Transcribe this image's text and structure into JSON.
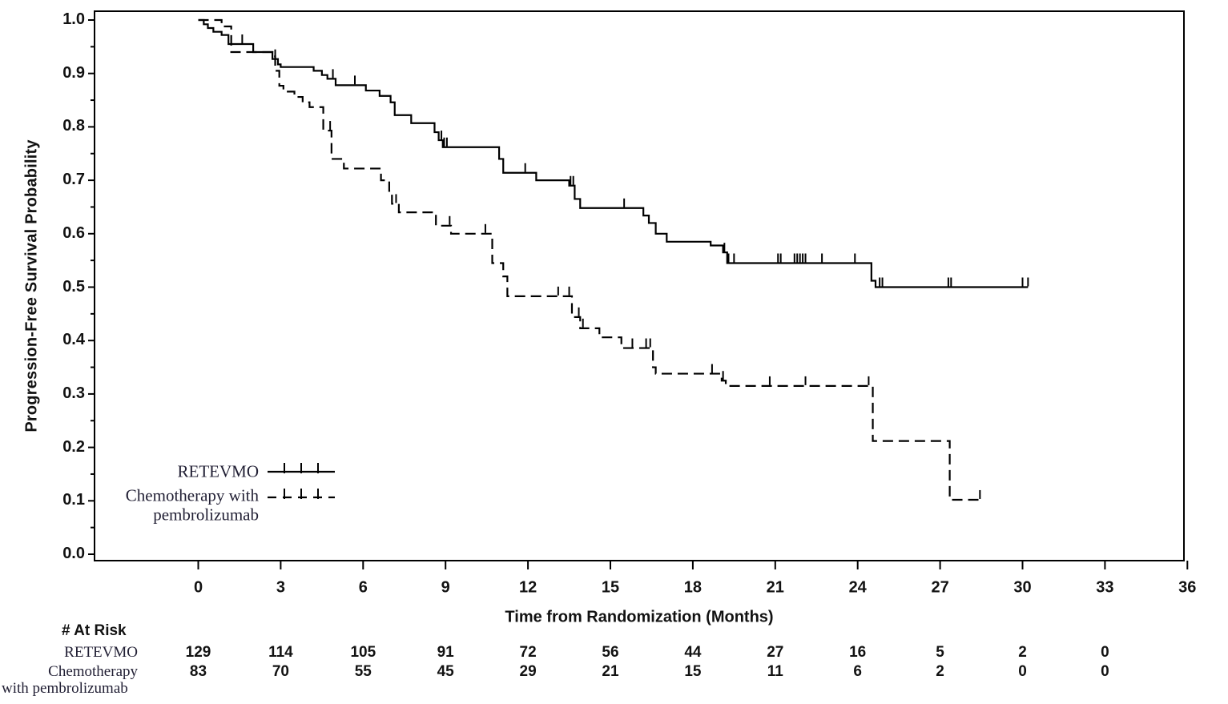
{
  "figure": {
    "background": "#ffffff",
    "curve_color": "#000000",
    "sans_text_color": "#121212",
    "serif_text_color": "#201e33"
  },
  "chart_data": {
    "type": "line",
    "subtype": "kaplan-meier-step-plot",
    "title": "",
    "xlabel": "Time from Randomization (Months)",
    "ylabel": "Progression-Free Survival Probability",
    "xlim": [
      -3.8,
      36.3
    ],
    "ylim": [
      -0.015,
      1.015
    ],
    "x_ticks": [
      0,
      3,
      6,
      9,
      12,
      15,
      18,
      21,
      24,
      27,
      30,
      33,
      36
    ],
    "y_ticks": [
      0.0,
      0.1,
      0.2,
      0.3,
      0.4,
      0.5,
      0.6,
      0.7,
      0.8,
      0.9,
      1.0
    ],
    "y_tick_labels": [
      "0.0",
      "0.1",
      "0.2",
      "0.3",
      "0.4",
      "0.5",
      "0.6",
      "0.7",
      "0.8",
      "0.9",
      "1.0"
    ],
    "y_minor_tick_step": 0.05,
    "grid": false,
    "legend_position": "inside-lower-left",
    "series": [
      {
        "name": "RETEVMO",
        "line_style": "solid",
        "steps": [
          [
            0,
            1.0
          ],
          [
            0.2,
            0.992
          ],
          [
            0.35,
            0.985
          ],
          [
            0.55,
            0.978
          ],
          [
            0.85,
            0.972
          ],
          [
            1.1,
            0.955
          ],
          [
            2.0,
            0.94
          ],
          [
            2.7,
            0.927
          ],
          [
            2.9,
            0.917
          ],
          [
            3.0,
            0.912
          ],
          [
            4.2,
            0.905
          ],
          [
            4.5,
            0.897
          ],
          [
            4.7,
            0.89
          ],
          [
            5.0,
            0.878
          ],
          [
            6.1,
            0.868
          ],
          [
            6.6,
            0.858
          ],
          [
            7.0,
            0.846
          ],
          [
            7.15,
            0.822
          ],
          [
            7.75,
            0.807
          ],
          [
            8.6,
            0.79
          ],
          [
            8.75,
            0.775
          ],
          [
            8.9,
            0.762
          ],
          [
            10.95,
            0.74
          ],
          [
            11.1,
            0.714
          ],
          [
            12.3,
            0.7
          ],
          [
            13.5,
            0.69
          ],
          [
            13.7,
            0.665
          ],
          [
            13.9,
            0.648
          ],
          [
            16.2,
            0.634
          ],
          [
            16.4,
            0.62
          ],
          [
            16.65,
            0.6
          ],
          [
            17.05,
            0.585
          ],
          [
            18.65,
            0.578
          ],
          [
            19.1,
            0.565
          ],
          [
            19.25,
            0.545
          ],
          [
            24.5,
            0.512
          ],
          [
            24.65,
            0.5
          ]
        ],
        "end_time": 30.2,
        "censor_times": [
          1.6,
          2.8,
          4.9,
          5.7,
          8.85,
          8.95,
          9.05,
          11.9,
          13.55,
          13.65,
          15.5,
          19.15,
          19.3,
          19.5,
          21.1,
          21.2,
          21.7,
          21.8,
          21.9,
          22.0,
          22.1,
          22.7,
          23.9,
          24.8,
          24.9,
          27.3,
          27.4,
          30.0,
          30.2
        ]
      },
      {
        "name": "Chemotherapy with pembrolizumab",
        "line_style": "dashed",
        "steps": [
          [
            0,
            1.0
          ],
          [
            0.85,
            0.988
          ],
          [
            1.2,
            0.94
          ],
          [
            2.7,
            0.932
          ],
          [
            2.8,
            0.905
          ],
          [
            2.95,
            0.877
          ],
          [
            3.1,
            0.866
          ],
          [
            3.5,
            0.856
          ],
          [
            3.8,
            0.846
          ],
          [
            4.05,
            0.837
          ],
          [
            4.55,
            0.793
          ],
          [
            4.85,
            0.74
          ],
          [
            5.3,
            0.722
          ],
          [
            6.65,
            0.7
          ],
          [
            6.95,
            0.68
          ],
          [
            7.05,
            0.656
          ],
          [
            7.3,
            0.64
          ],
          [
            8.65,
            0.615
          ],
          [
            9.2,
            0.6
          ],
          [
            10.7,
            0.545
          ],
          [
            11.1,
            0.52
          ],
          [
            11.25,
            0.483
          ],
          [
            13.6,
            0.444
          ],
          [
            13.9,
            0.423
          ],
          [
            14.6,
            0.406
          ],
          [
            15.4,
            0.386
          ],
          [
            16.55,
            0.35
          ],
          [
            16.65,
            0.338
          ],
          [
            19.05,
            0.325
          ],
          [
            19.2,
            0.315
          ],
          [
            24.55,
            0.212
          ],
          [
            27.35,
            0.102
          ]
        ],
        "end_time": 28.5,
        "censor_times": [
          4.8,
          7.2,
          9.15,
          10.45,
          13.1,
          13.5,
          13.85,
          14.0,
          15.8,
          16.3,
          16.45,
          18.7,
          19.1,
          20.8,
          22.1,
          24.4,
          28.45
        ]
      }
    ]
  },
  "legend": {
    "entries": [
      {
        "lines": [
          "RETEVMO"
        ],
        "style": "solid"
      },
      {
        "lines": [
          "Chemotherapy with",
          "pembrolizumab"
        ],
        "style": "dashed"
      }
    ]
  },
  "risk_table": {
    "header": "# At Risk",
    "time_points": [
      0,
      3,
      6,
      9,
      12,
      15,
      18,
      21,
      24,
      27,
      30,
      33
    ],
    "rows": [
      {
        "label_lines": [
          "RETEVMO"
        ],
        "counts": [
          129,
          114,
          105,
          91,
          72,
          56,
          44,
          27,
          16,
          5,
          2,
          0
        ]
      },
      {
        "label_lines": [
          "Chemotherapy",
          "with pembrolizumab"
        ],
        "counts": [
          83,
          70,
          55,
          45,
          29,
          21,
          15,
          11,
          6,
          2,
          0,
          0
        ]
      }
    ]
  }
}
